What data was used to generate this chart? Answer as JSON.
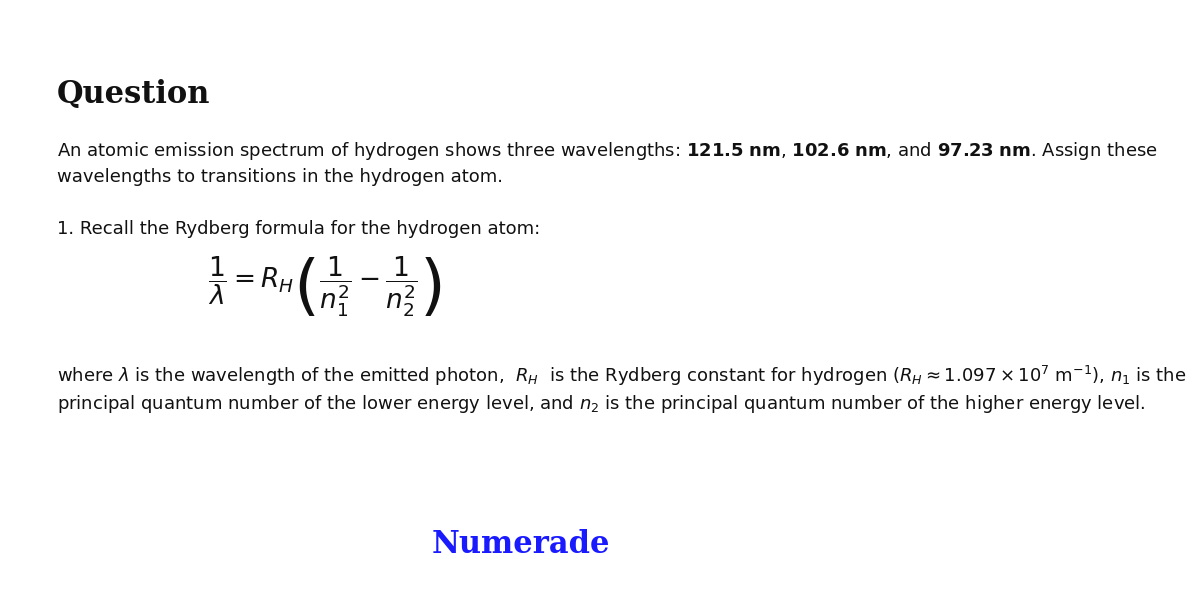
{
  "background_color": "#ffffff",
  "title": "Question",
  "title_fontsize": 22,
  "title_bold": true,
  "title_font": "DejaVu Serif",
  "body_font": "DejaVu Sans",
  "body_fontsize": 13,
  "line1": "An atomic emission spectrum of hydrogen shows three wavelengths: ",
  "line1_math": "121.5 \\text{ nm}, 102.6 \\text{ nm}, \\text{ and } 97.23 \\text{ nm}",
  "line1_end": ". Assign these",
  "line2": "wavelengths to transitions in the hydrogen atom.",
  "step1": "1. Recall the Rydberg formula for the hydrogen atom:",
  "formula": "\\frac{1}{\\lambda} = R_H \\left( \\frac{1}{n_1^2} - \\frac{1}{n_2^2} \\right)",
  "where_line": "where $\\lambda$ is the wavelength of the emitted photon,  $R_H$  is the Rydberg constant for hydrogen ($R_H \\approx 1.097 \\times 10^7 \\text{ m}^{-1}$), $n_1$ is the",
  "where_line2": "principal quantum number of the lower energy level, and $n_2$ is the principal quantum number of the higher energy level.",
  "numerade_color": "#1a1aff",
  "numerade_text": "Numerade",
  "numerade_fontsize": 22
}
